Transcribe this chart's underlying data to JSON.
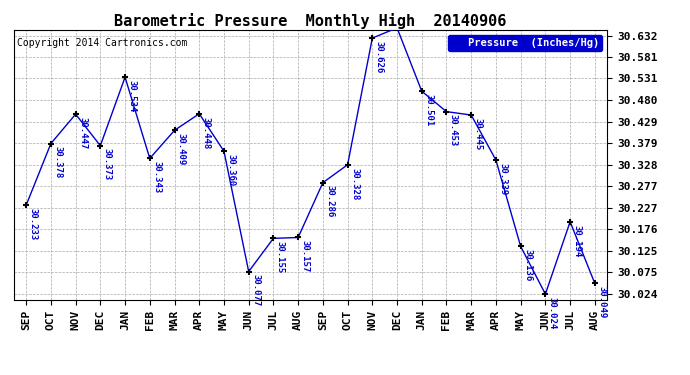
{
  "title": "Barometric Pressure  Monthly High  20140906",
  "copyright": "Copyright 2014 Cartronics.com",
  "legend_label": "Pressure  (Inches/Hg)",
  "months": [
    "SEP",
    "OCT",
    "NOV",
    "DEC",
    "JAN",
    "FEB",
    "MAR",
    "APR",
    "MAY",
    "JUN",
    "JUL",
    "AUG",
    "SEP",
    "OCT",
    "NOV",
    "DEC",
    "JAN",
    "FEB",
    "MAR",
    "APR",
    "MAY",
    "JUN",
    "JUL",
    "AUG"
  ],
  "values": [
    30.233,
    30.378,
    30.447,
    30.373,
    30.534,
    30.343,
    30.409,
    30.448,
    30.36,
    30.077,
    30.155,
    30.157,
    30.286,
    30.328,
    30.626,
    30.65,
    30.501,
    30.453,
    30.445,
    30.339,
    30.136,
    30.024,
    30.194,
    30.049
  ],
  "ylim_min": 30.01,
  "ylim_max": 30.645,
  "yticks": [
    30.024,
    30.075,
    30.125,
    30.176,
    30.227,
    30.277,
    30.328,
    30.379,
    30.429,
    30.48,
    30.531,
    30.581,
    30.632
  ],
  "line_color": "#0000cc",
  "marker_color": "#000000",
  "background_color": "#ffffff",
  "grid_color": "#aaaaaa",
  "title_fontsize": 11,
  "tick_fontsize": 8,
  "annotation_fontsize": 6.5,
  "legend_bg_color": "#0000cc",
  "legend_text_color": "#ffffff",
  "copyright_color": "#000000",
  "copyright_fontsize": 7
}
